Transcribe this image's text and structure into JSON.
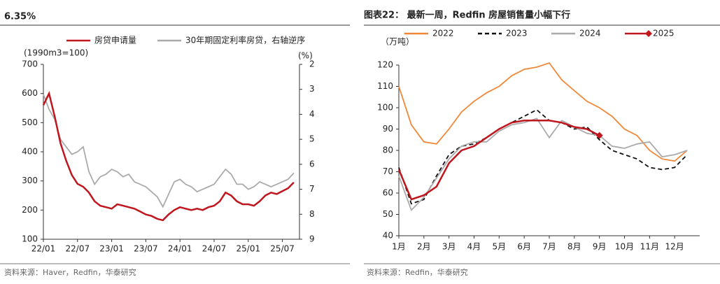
{
  "header": {
    "text": "6.35%"
  },
  "chart_data": [
    {
      "type": "line",
      "left_axis_label": "(1990m3=100)",
      "right_axis_label": "(%)",
      "source": "资料来源：Haver，Redfin，华泰研究",
      "xlim": [
        0,
        45
      ],
      "xticks": [
        {
          "value": 0,
          "label": "22/01"
        },
        {
          "value": 6,
          "label": "22/07"
        },
        {
          "value": 12,
          "label": "23/01"
        },
        {
          "value": 18,
          "label": "23/07"
        },
        {
          "value": 24,
          "label": "24/01"
        },
        {
          "value": 30,
          "label": "24/07"
        },
        {
          "value": 36,
          "label": "25/01"
        },
        {
          "value": 42,
          "label": "25/07"
        }
      ],
      "ylim": [
        100,
        700
      ],
      "yticks": [
        100,
        200,
        300,
        400,
        500,
        600,
        700
      ],
      "y2lim": [
        2,
        9
      ],
      "y2ticks": [
        2,
        3,
        4,
        5,
        6,
        7,
        8,
        9
      ],
      "y2_inverted": true,
      "series": [
        {
          "name": "30年期固定利率房贷，右轴逆序",
          "color": "#aaaaaa",
          "axis": "y2",
          "x": [
            0,
            1,
            2,
            3,
            4,
            5,
            6,
            7,
            8,
            9,
            10,
            11,
            12,
            13,
            14,
            15,
            16,
            17,
            18,
            19,
            20,
            21,
            22,
            23,
            24,
            25,
            26,
            27,
            28,
            29,
            30,
            31,
            32,
            33,
            34,
            35,
            36,
            37,
            38,
            39,
            40,
            41,
            42,
            43,
            44
          ],
          "values": [
            3.2,
            3.8,
            4.2,
            5.0,
            5.3,
            5.6,
            5.5,
            5.3,
            6.3,
            6.8,
            6.5,
            6.4,
            6.2,
            6.3,
            6.5,
            6.4,
            6.7,
            6.8,
            6.9,
            7.1,
            7.3,
            7.7,
            7.2,
            6.7,
            6.6,
            6.8,
            6.9,
            7.1,
            7.0,
            6.9,
            6.8,
            6.5,
            6.2,
            6.4,
            6.8,
            6.8,
            7.0,
            6.9,
            6.7,
            6.8,
            6.9,
            6.8,
            6.7,
            6.6,
            6.35
          ]
        },
        {
          "name": "房贷申请量",
          "color": "#c0161e",
          "x": [
            0,
            1,
            2,
            3,
            4,
            5,
            6,
            7,
            8,
            9,
            10,
            11,
            12,
            13,
            14,
            15,
            16,
            17,
            18,
            19,
            20,
            21,
            22,
            23,
            24,
            25,
            26,
            27,
            28,
            29,
            30,
            31,
            32,
            33,
            34,
            35,
            36,
            37,
            38,
            39,
            40,
            41,
            42,
            43,
            44
          ],
          "values": [
            560,
            600,
            520,
            430,
            370,
            320,
            290,
            280,
            260,
            230,
            215,
            210,
            205,
            220,
            215,
            210,
            205,
            195,
            185,
            180,
            170,
            165,
            185,
            200,
            210,
            205,
            200,
            205,
            200,
            210,
            215,
            230,
            260,
            250,
            230,
            220,
            220,
            215,
            230,
            250,
            260,
            255,
            265,
            275,
            295
          ]
        }
      ]
    },
    {
      "type": "line",
      "title": "图表22：  最新一周，Redfin 房屋销售量小幅下行",
      "unit_label": "（万吨）",
      "source": "资料来源：Redfin，华泰研究",
      "xlim": [
        1,
        13
      ],
      "xticks": [
        {
          "value": 1,
          "label": "1月"
        },
        {
          "value": 2,
          "label": "2月"
        },
        {
          "value": 3,
          "label": "3月"
        },
        {
          "value": 4,
          "label": "4月"
        },
        {
          "value": 5,
          "label": "5月"
        },
        {
          "value": 6,
          "label": "6月"
        },
        {
          "value": 7,
          "label": "7月"
        },
        {
          "value": 8,
          "label": "8月"
        },
        {
          "value": 9,
          "label": "9月"
        },
        {
          "value": 10,
          "label": "10月"
        },
        {
          "value": 11,
          "label": "11月"
        },
        {
          "value": 12,
          "label": "12月"
        }
      ],
      "ylim": [
        40,
        120
      ],
      "yticks": [
        40,
        50,
        60,
        70,
        80,
        90,
        100,
        110,
        120
      ],
      "series": [
        {
          "name": "2022",
          "color": "#f0883a",
          "x": [
            1,
            1.5,
            2,
            2.5,
            3,
            3.5,
            4,
            4.5,
            5,
            5.5,
            6,
            6.5,
            7,
            7.5,
            8,
            8.5,
            9,
            9.5,
            10,
            10.5,
            11,
            11.5,
            12,
            12.5
          ],
          "values": [
            110,
            92,
            84,
            83,
            90,
            98,
            103,
            107,
            110,
            115,
            118,
            119,
            121,
            113,
            108,
            103,
            100,
            96,
            90,
            87,
            80,
            76,
            75,
            80
          ]
        },
        {
          "name": "2023",
          "color": "#111111",
          "dash": true,
          "x": [
            1,
            1.5,
            2,
            2.5,
            3,
            3.5,
            4,
            4.5,
            5,
            5.5,
            6,
            6.5,
            7,
            7.5,
            8,
            8.5,
            9,
            9.5,
            10,
            10.5,
            11,
            11.5,
            12,
            12.5
          ],
          "values": [
            72,
            55,
            57,
            68,
            78,
            82,
            83,
            86,
            90,
            93,
            96,
            99,
            94,
            93,
            90,
            91,
            85,
            80,
            78,
            76,
            72,
            71,
            72,
            78
          ]
        },
        {
          "name": "2024",
          "color": "#aaaaaa",
          "x": [
            1,
            1.5,
            2,
            2.5,
            3,
            3.5,
            4,
            4.5,
            5,
            5.5,
            6,
            6.5,
            7,
            7.5,
            8,
            8.5,
            9,
            9.5,
            10,
            10.5,
            11,
            11.5,
            12,
            12.5
          ],
          "values": [
            68,
            52,
            58,
            67,
            76,
            82,
            84,
            84,
            89,
            92,
            93,
            95,
            86,
            94,
            91,
            88,
            87,
            82,
            81,
            83,
            84,
            77,
            78,
            80
          ]
        },
        {
          "name": "2025",
          "color": "#c0161e",
          "marker": "diamond",
          "x": [
            1,
            1.5,
            2,
            2.5,
            3,
            3.5,
            4,
            4.5,
            5,
            5.5,
            6,
            6.5,
            7,
            7.5,
            8,
            8.5,
            9
          ],
          "values": [
            71,
            57,
            59,
            63,
            74,
            80,
            82,
            86,
            90,
            93,
            94,
            94,
            94,
            93,
            91,
            90,
            87
          ]
        }
      ]
    }
  ]
}
